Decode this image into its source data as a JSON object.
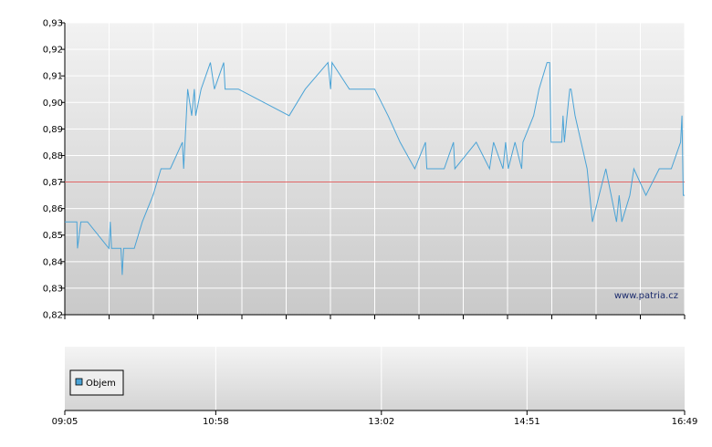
{
  "chart_data": [
    {
      "type": "line",
      "y_ticks": [
        "0,82",
        "0,83",
        "0,84",
        "0,85",
        "0,86",
        "0,87",
        "0,88",
        "0,89",
        "0,90",
        "0,91",
        "0,92",
        "0,93"
      ],
      "ylim": [
        0.82,
        0.93
      ],
      "x_ticks": [
        {
          "label": "09:05",
          "minutes": 545
        },
        {
          "label": "10:58",
          "minutes": 658
        },
        {
          "label": "13:02",
          "minutes": 782
        },
        {
          "label": "14:51",
          "minutes": 891
        },
        {
          "label": "16:49",
          "minutes": 1009
        }
      ],
      "xlim": [
        545,
        1009
      ],
      "reference_line": {
        "value": 0.87,
        "color": "#e06666"
      },
      "series": [
        {
          "color": "#4aa3d6",
          "points": [
            [
              545,
              0.855
            ],
            [
              554,
              0.855
            ],
            [
              554.5,
              0.845
            ],
            [
              557,
              0.855
            ],
            [
              562,
              0.855
            ],
            [
              578,
              0.845
            ],
            [
              579,
              0.855
            ],
            [
              580,
              0.845
            ],
            [
              587,
              0.845
            ],
            [
              588,
              0.835
            ],
            [
              589,
              0.845
            ],
            [
              597,
              0.845
            ],
            [
              603,
              0.855
            ],
            [
              611,
              0.865
            ],
            [
              617,
              0.875
            ],
            [
              624,
              0.875
            ],
            [
              633,
              0.885
            ],
            [
              634,
              0.875
            ],
            [
              637,
              0.905
            ],
            [
              640,
              0.895
            ],
            [
              642,
              0.905
            ],
            [
              643,
              0.895
            ],
            [
              647,
              0.905
            ],
            [
              654,
              0.915
            ],
            [
              657,
              0.905
            ],
            [
              664,
              0.915
            ],
            [
              665,
              0.905
            ],
            [
              675,
              0.905
            ],
            [
              713,
              0.895
            ],
            [
              725,
              0.905
            ],
            [
              742,
              0.915
            ],
            [
              744,
              0.905
            ],
            [
              745,
              0.915
            ],
            [
              758,
              0.905
            ],
            [
              777,
              0.905
            ],
            [
              787,
              0.895
            ],
            [
              796,
              0.885
            ],
            [
              807,
              0.875
            ],
            [
              815,
              0.885
            ],
            [
              816,
              0.875
            ],
            [
              829,
              0.875
            ],
            [
              836,
              0.885
            ],
            [
              837,
              0.875
            ],
            [
              853,
              0.885
            ],
            [
              863,
              0.875
            ],
            [
              866,
              0.885
            ],
            [
              873,
              0.875
            ],
            [
              875,
              0.885
            ],
            [
              877,
              0.875
            ],
            [
              882,
              0.885
            ],
            [
              887,
              0.875
            ],
            [
              888,
              0.885
            ],
            [
              896,
              0.895
            ],
            [
              900,
              0.905
            ],
            [
              906,
              0.915
            ],
            [
              908,
              0.915
            ],
            [
              909,
              0.885
            ],
            [
              917,
              0.885
            ],
            [
              918,
              0.895
            ],
            [
              919,
              0.885
            ],
            [
              921,
              0.895
            ],
            [
              923,
              0.905
            ],
            [
              924,
              0.905
            ],
            [
              927,
              0.895
            ],
            [
              936,
              0.875
            ],
            [
              940,
              0.855
            ],
            [
              945,
              0.865
            ],
            [
              950,
              0.875
            ],
            [
              958,
              0.855
            ],
            [
              960,
              0.865
            ],
            [
              962,
              0.855
            ],
            [
              968,
              0.865
            ],
            [
              971,
              0.875
            ],
            [
              980,
              0.865
            ],
            [
              990,
              0.875
            ],
            [
              999,
              0.875
            ],
            [
              1006,
              0.885
            ],
            [
              1007,
              0.895
            ],
            [
              1008,
              0.865
            ],
            [
              1009,
              0.865
            ]
          ]
        }
      ],
      "watermark": "www.patria.cz"
    },
    {
      "type": "bar",
      "legend": [
        {
          "name": "Objem",
          "color": "#4aa3d6"
        }
      ],
      "legend_position": "bottom-left",
      "values": []
    }
  ]
}
